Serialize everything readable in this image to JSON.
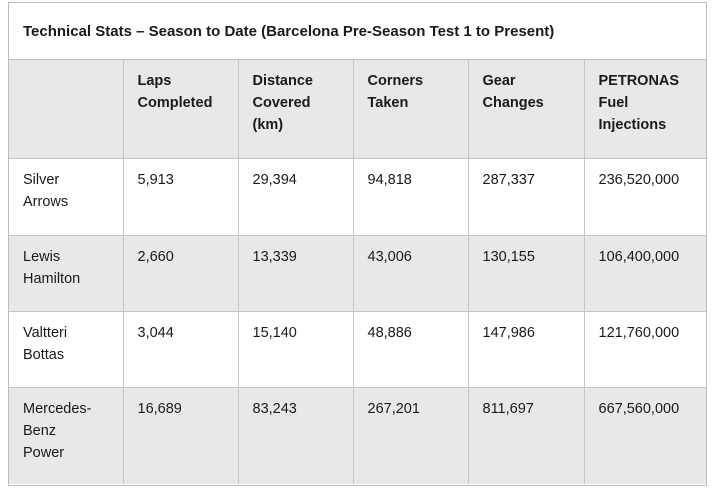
{
  "title": "Technical Stats – Season to Date (Barcelona Pre-Season Test 1 to Present)",
  "columns": [
    "",
    "Laps Completed",
    "Distance Covered (km)",
    "Corners Taken",
    "Gear Changes",
    "PETRONAS Fuel Injections"
  ],
  "rows": [
    {
      "label": "Silver Arrows",
      "values": [
        "5,913",
        "29,394",
        "94,818",
        "287,337",
        "236,520,000"
      ]
    },
    {
      "label": "Lewis Hamilton",
      "values": [
        "2,660",
        "13,339",
        "43,006",
        "130,155",
        "106,400,000"
      ]
    },
    {
      "label": "Valtteri Bottas",
      "values": [
        "3,044",
        "15,140",
        "48,886",
        "147,986",
        "121,760,000"
      ]
    },
    {
      "label": "Mercedes-Benz Power",
      "values": [
        "16,689",
        "83,243",
        "267,201",
        "811,697",
        "667,560,000"
      ]
    }
  ]
}
